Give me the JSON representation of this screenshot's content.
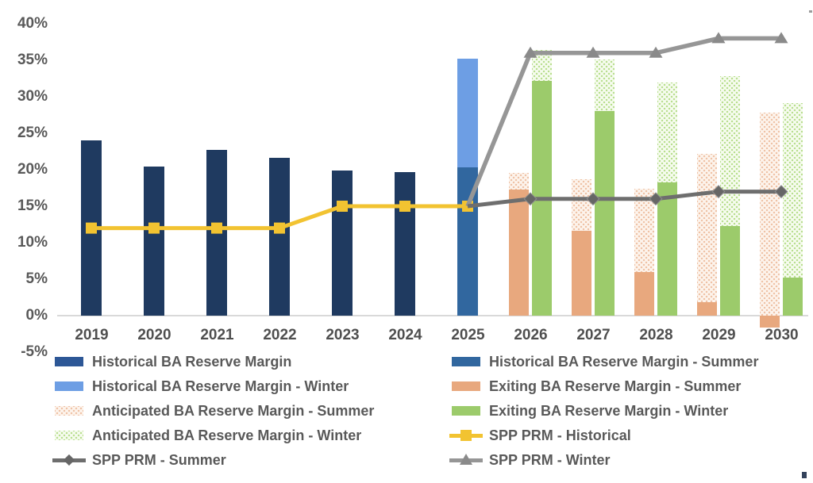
{
  "colors": {
    "navy": "#1f3a60",
    "navy_legend": "#2d5796",
    "steel_blue": "#31679f",
    "light_blue": "#6d9ee4",
    "salmon": "#e8a87e",
    "green": "#9ccb6b",
    "yellow": "#f2c331",
    "gray_summer": "#6e6e6e",
    "gray_winter": "#969696",
    "axis": "#d9d9d9",
    "tick_text": "#595959"
  },
  "y_axis": {
    "tick_labels": [
      "40%",
      "35%",
      "30%",
      "25%",
      "20%",
      "15%",
      "10%",
      "5%",
      "0%",
      "-5%"
    ],
    "tick_values": [
      40,
      35,
      30,
      25,
      20,
      15,
      10,
      5,
      0,
      -5
    ]
  },
  "chart_data": {
    "type": "combo (grouped/stacked bars + lines)",
    "title": "",
    "xlabel": "",
    "ylabel": "",
    "unit": "%",
    "grid": false,
    "legend_position": "bottom-two-columns",
    "ylim": [
      -5,
      40
    ],
    "categories": [
      "2019",
      "2020",
      "2021",
      "2022",
      "2023",
      "2024",
      "2025",
      "2026",
      "2027",
      "2028",
      "2029",
      "2030"
    ],
    "series": [
      {
        "role": "bar_hist",
        "name": "Historical BA Reserve Margin",
        "type": "bar",
        "color": "navy",
        "values": [
          24.0,
          20.4,
          22.7,
          21.6,
          19.9,
          19.7,
          null,
          null,
          null,
          null,
          null,
          null
        ]
      },
      {
        "role": "bar_hist_summer",
        "name": "Historical BA Reserve Margin - Summer",
        "type": "bar",
        "color": "steel_blue",
        "values": [
          null,
          null,
          null,
          null,
          null,
          null,
          20.3,
          null,
          null,
          null,
          null,
          null
        ]
      },
      {
        "role": "bar_hist_winter",
        "name": "Historical BA Reserve Margin - Winter",
        "type": "bar",
        "color": "light_blue",
        "stacked_on": "bar_hist_summer",
        "values": [
          null,
          null,
          null,
          null,
          null,
          null,
          35.2,
          null,
          null,
          null,
          null,
          null
        ]
      },
      {
        "role": "bar_exit_summer",
        "name": "Exiting BA Reserve Margin - Summer",
        "type": "bar",
        "color": "salmon",
        "group": "summer",
        "values": [
          null,
          null,
          null,
          null,
          null,
          null,
          null,
          17.3,
          11.6,
          6.0,
          1.8,
          -1.6
        ]
      },
      {
        "role": "bar_ant_summer",
        "name": "Anticipated BA Reserve Margin - Summer",
        "type": "bar",
        "pattern": "pat_pink",
        "group": "summer",
        "base": "bar_exit_summer",
        "values": [
          null,
          null,
          null,
          null,
          null,
          null,
          null,
          19.6,
          18.7,
          17.4,
          22.2,
          27.8
        ]
      },
      {
        "role": "bar_exit_winter",
        "name": "Exiting BA Reserve Margin - Winter",
        "type": "bar",
        "color": "green",
        "group": "winter",
        "values": [
          null,
          null,
          null,
          null,
          null,
          null,
          null,
          32.2,
          28.0,
          18.3,
          12.3,
          5.2
        ]
      },
      {
        "role": "bar_ant_winter",
        "name": "Anticipated BA Reserve Margin - Winter",
        "type": "bar",
        "pattern": "pat_green",
        "group": "winter",
        "base": "bar_exit_winter",
        "values": [
          null,
          null,
          null,
          null,
          null,
          null,
          null,
          36.4,
          35.1,
          32.0,
          32.8,
          29.1
        ]
      },
      {
        "role": "line_hist",
        "name": "SPP PRM - Historical",
        "type": "line",
        "color": "yellow",
        "marker": "square",
        "marker_from_index": 0,
        "values": [
          12,
          12,
          12,
          12,
          15,
          15,
          15,
          null,
          null,
          null,
          null,
          null
        ]
      },
      {
        "role": "line_summer",
        "name": "SPP PRM - Summer",
        "type": "line",
        "color": "gray_summer",
        "marker": "diamond",
        "marker_from_index": 7,
        "values": [
          null,
          null,
          null,
          null,
          null,
          null,
          15,
          16,
          16,
          16,
          17,
          17
        ]
      },
      {
        "role": "line_winter",
        "name": "SPP PRM - Winter",
        "type": "line",
        "color": "gray_winter",
        "marker": "triangle",
        "marker_from_index": 7,
        "values": [
          null,
          null,
          null,
          null,
          null,
          null,
          15,
          36,
          36,
          36,
          38,
          38
        ]
      }
    ]
  },
  "legend": {
    "columns": [
      {
        "items": [
          {
            "label": "Historical BA Reserve Margin",
            "kind": "solid",
            "swatch": "navy_legend"
          },
          {
            "label": "Historical BA Reserve Margin - Winter",
            "kind": "solid",
            "swatch": "light_blue"
          },
          {
            "label": "Anticipated BA Reserve Margin - Summer",
            "kind": "pattern",
            "swatch": "pat_pink"
          },
          {
            "label": "Anticipated BA Reserve Margin - Winter",
            "kind": "pattern",
            "swatch": "pat_green"
          },
          {
            "label": "SPP PRM - Summer",
            "kind": "line",
            "line_color": "gray_summer",
            "marker": "diamond"
          }
        ]
      },
      {
        "items": [
          {
            "label": "Historical BA Reserve Margin - Summer",
            "kind": "solid",
            "swatch": "steel_blue"
          },
          {
            "label": "Exiting BA Reserve Margin - Summer",
            "kind": "solid",
            "swatch": "salmon"
          },
          {
            "label": "Exiting BA Reserve Margin - Winter",
            "kind": "solid",
            "swatch": "green"
          },
          {
            "label": "SPP PRM - Historical",
            "kind": "line",
            "line_color": "yellow",
            "marker": "square"
          },
          {
            "label": "SPP PRM - Winter",
            "kind": "line",
            "line_color": "gray_winter",
            "marker": "triangle"
          }
        ]
      }
    ]
  }
}
